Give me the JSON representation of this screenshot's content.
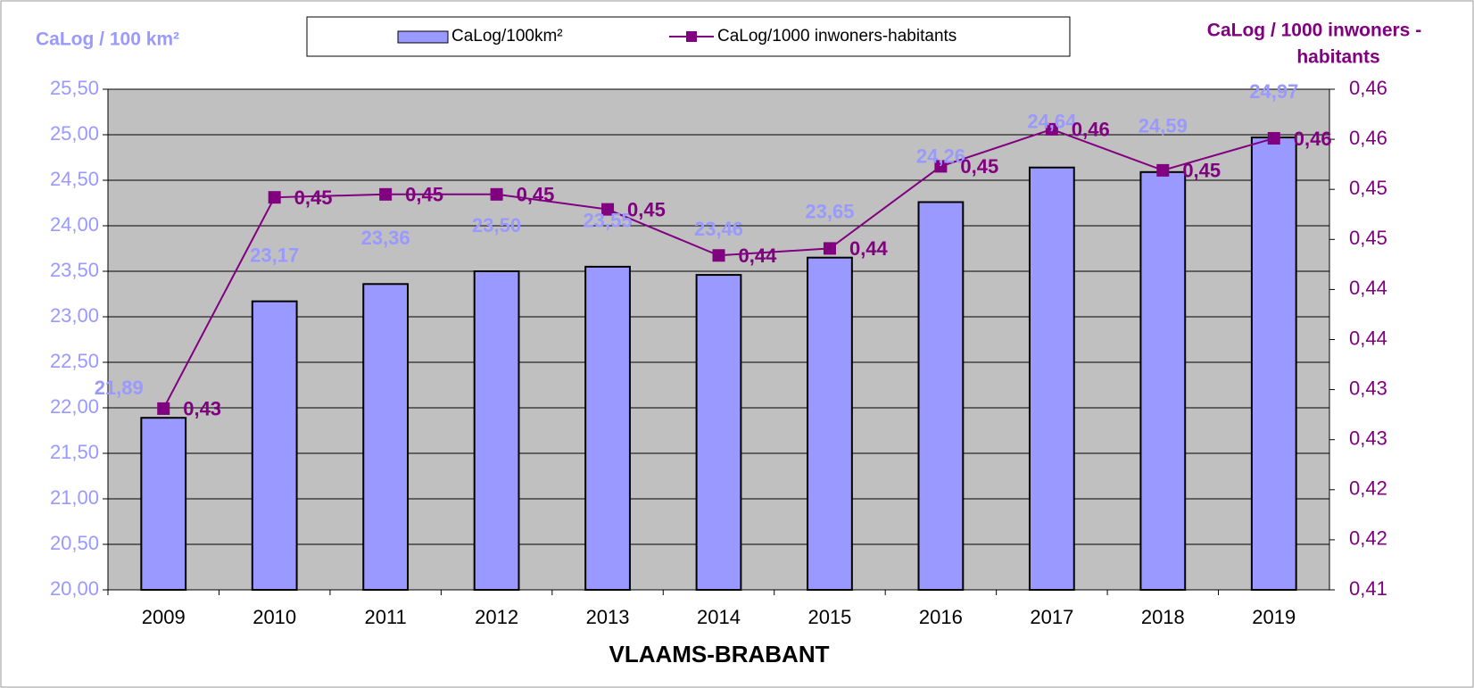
{
  "chart_data": {
    "type": "bar-line",
    "xlabel": "VLAAMS-BRABANT",
    "ylabel": "CaLog / 100 km²",
    "y2label_lines": [
      "CaLog / 1000 inwoners -",
      "habitants"
    ],
    "categories": [
      "2009",
      "2010",
      "2011",
      "2012",
      "2013",
      "2014",
      "2015",
      "2016",
      "2017",
      "2018",
      "2019"
    ],
    "series": [
      {
        "name": "CaLog/100km²",
        "type": "bar",
        "color": "#9999ff",
        "label_color": "#9999ff",
        "values": [
          21.89,
          23.17,
          23.36,
          23.5,
          23.55,
          23.46,
          23.65,
          24.26,
          24.64,
          24.59,
          24.97
        ],
        "value_labels": [
          "21,89",
          "23,17",
          "23,36",
          "23,50",
          "23,55",
          "23,46",
          "23,65",
          "24,26",
          "24,64",
          "24,59",
          "24,97"
        ]
      },
      {
        "name": "CaLog/1000 inwoners-habitants",
        "type": "line",
        "axis": "y2",
        "color": "#800080",
        "values": [
          0.4281,
          0.4492,
          0.4495,
          0.4495,
          0.448,
          0.4434,
          0.4441,
          0.4523,
          0.456,
          0.4519,
          0.4551
        ],
        "value_labels": [
          "0,43",
          "0,45",
          "0,45",
          "0,45",
          "0,45",
          "0,44",
          "0,44",
          "0,45",
          "0,46",
          "0,45",
          "0,46"
        ]
      }
    ],
    "ylim": [
      20,
      25.5
    ],
    "yticks": [
      {
        "value": 20,
        "label": "20,00"
      },
      {
        "value": 20.5,
        "label": "20,50"
      },
      {
        "value": 21,
        "label": "21,00"
      },
      {
        "value": 21.5,
        "label": "21,50"
      },
      {
        "value": 22,
        "label": "22,00"
      },
      {
        "value": 22.5,
        "label": "22,50"
      },
      {
        "value": 23,
        "label": "23,00"
      },
      {
        "value": 23.5,
        "label": "23,50"
      },
      {
        "value": 24,
        "label": "24,00"
      },
      {
        "value": 24.5,
        "label": "24,50"
      },
      {
        "value": 25,
        "label": "25,00"
      },
      {
        "value": 25.5,
        "label": "25,50"
      }
    ],
    "y2lim": [
      0.41,
      0.46
    ],
    "y2ticks": [
      {
        "value": 0.41,
        "label": "0,41"
      },
      {
        "value": 0.415,
        "label": "0,42"
      },
      {
        "value": 0.42,
        "label": "0,42"
      },
      {
        "value": 0.425,
        "label": "0,43"
      },
      {
        "value": 0.43,
        "label": "0,43"
      },
      {
        "value": 0.435,
        "label": "0,44"
      },
      {
        "value": 0.44,
        "label": "0,44"
      },
      {
        "value": 0.445,
        "label": "0,45"
      },
      {
        "value": 0.45,
        "label": "0,45"
      },
      {
        "value": 0.455,
        "label": "0,46"
      },
      {
        "value": 0.46,
        "label": "0,46"
      }
    ],
    "grid": true,
    "plot_background": "#c0c0c0",
    "legend": "top"
  }
}
